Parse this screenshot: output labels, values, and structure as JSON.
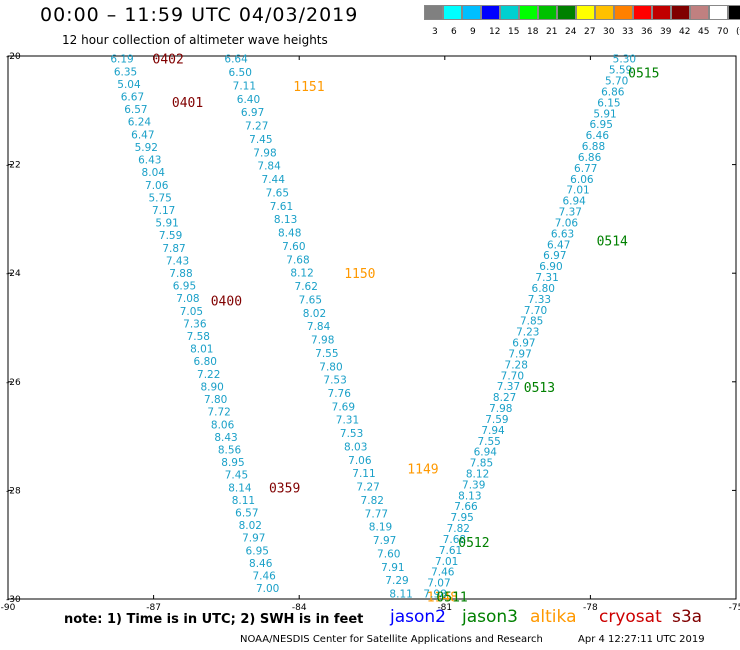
{
  "title": "00:00 – 11:59 UTC 04/03/2019",
  "subtitle": "12 hour collection of altimeter wave heights",
  "colorbar": {
    "labels": [
      "3",
      "6",
      "9",
      "12",
      "15",
      "18",
      "21",
      "24",
      "27",
      "30",
      "33",
      "36",
      "39",
      "42",
      "45",
      "70",
      "(ft)"
    ],
    "colors": [
      "#808080",
      "#00ffff",
      "#00bfff",
      "#0000ff",
      "#00d0d0",
      "#00ff00",
      "#00c000",
      "#008000",
      "#ffff00",
      "#ffc000",
      "#ff8000",
      "#ff0000",
      "#c00000",
      "#800000",
      "#c08080",
      "#ffffff",
      "#000000"
    ]
  },
  "note": "note: 1) Time is in UTC; 2) SWH is in feet",
  "legend": [
    {
      "label": "jason2",
      "color": "#0000ff"
    },
    {
      "label": "jason3",
      "color": "#008000"
    },
    {
      "label": "altika",
      "color": "#ff9900"
    },
    {
      "label": "cryosat",
      "color": "#cc0000"
    },
    {
      "label": "s3a",
      "color": "#800000"
    }
  ],
  "credit": "NOAA/NESDIS Center for Satellite Applications and Research",
  "timestamp": "Apr  4 12:27:11 UTC 2019",
  "chart_data": {
    "type": "scatter",
    "xlim": [
      -90,
      -75
    ],
    "ylim": [
      -30,
      -20
    ],
    "x_ticks": [
      "-90",
      "-87",
      "-84",
      "-81",
      "-78",
      "-75"
    ],
    "y_ticks": [
      "-20",
      "-22",
      "-24",
      "-26",
      "-28",
      "-30"
    ],
    "value_color": "#1aa0c8",
    "tracks": [
      {
        "satellite": "cryosat",
        "start": [
          -87.65,
          -20.05
        ],
        "end": [
          -84.65,
          -29.8
        ],
        "values": [
          "6.19",
          "6.35",
          "5.04",
          "6.67",
          "6.57",
          "6.24",
          "6.47",
          "5.92",
          "6.43",
          "8.04",
          "7.06",
          "5.75",
          "7.17",
          "5.91",
          "7.59",
          "7.87",
          "7.43",
          "7.88",
          "6.95",
          "7.08",
          "7.05",
          "7.36",
          "7.58",
          "8.01",
          "6.80",
          "7.22",
          "8.90",
          "7.80",
          "7.72",
          "8.06",
          "8.43",
          "8.56",
          "8.95",
          "7.45",
          "8.14",
          "8.11",
          "6.57",
          "8.02",
          "7.97",
          "6.95",
          "8.46",
          "7.46",
          "7.00"
        ],
        "time_labels": [
          {
            "text": "0402",
            "x": -86.7,
            "y": -20.05
          },
          {
            "text": "0401",
            "x": -86.3,
            "y": -20.85
          },
          {
            "text": "0400",
            "x": -85.5,
            "y": -24.5
          },
          {
            "text": "0359",
            "x": -84.3,
            "y": -27.95
          }
        ],
        "label_color": "#800000"
      },
      {
        "satellite": "altika",
        "start": [
          -85.3,
          -20.05
        ],
        "end": [
          -81.9,
          -29.9
        ],
        "values": [
          "6.64",
          "6.50",
          "7.11",
          "6.40",
          "6.97",
          "7.27",
          "7.45",
          "7.98",
          "7.84",
          "7.44",
          "7.65",
          "7.61",
          "8.13",
          "8.48",
          "7.60",
          "7.68",
          "8.12",
          "7.62",
          "7.65",
          "8.02",
          "7.84",
          "7.98",
          "7.55",
          "7.80",
          "7.53",
          "7.76",
          "7.69",
          "7.31",
          "7.53",
          "8.03",
          "7.06",
          "7.11",
          "7.27",
          "7.82",
          "7.77",
          "8.19",
          "7.97",
          "7.60",
          "7.91",
          "7.29",
          "8.11"
        ],
        "time_labels": [
          {
            "text": "1151",
            "x": -83.8,
            "y": -20.55
          },
          {
            "text": "1150",
            "x": -82.75,
            "y": -24.0
          },
          {
            "text": "1149",
            "x": -81.45,
            "y": -27.6
          },
          {
            "text": "1148",
            "x": -81.05,
            "y": -29.95
          }
        ],
        "label_color": "#ff9900"
      },
      {
        "satellite": "jason3",
        "start": [
          -81.2,
          -29.9
        ],
        "end": [
          -77.3,
          -20.05
        ],
        "values": [
          "7.98",
          "7.07",
          "7.46",
          "7.01",
          "7.61",
          "7.68",
          "7.82",
          "7.95",
          "7.66",
          "8.13",
          "7.39",
          "8.12",
          "7.85",
          "6.94",
          "7.55",
          "7.94",
          "7.59",
          "7.98",
          "8.27",
          "7.37",
          "7.70",
          "7.28",
          "7.97",
          "6.97",
          "7.23",
          "7.85",
          "7.70",
          "7.33",
          "6.80",
          "7.31",
          "6.90",
          "6.97",
          "6.47",
          "6.63",
          "7.06",
          "7.37",
          "6.94",
          "7.01",
          "6.06",
          "6.77",
          "6.86",
          "6.88",
          "6.46",
          "6.95",
          "5.91",
          "6.15",
          "6.86",
          "5.70",
          "5.59",
          "5.30"
        ],
        "time_labels": [
          {
            "text": "0515",
            "x": -76.9,
            "y": -20.3
          },
          {
            "text": "0514",
            "x": -77.55,
            "y": -23.4
          },
          {
            "text": "0513",
            "x": -79.05,
            "y": -26.1
          },
          {
            "text": "0512",
            "x": -80.4,
            "y": -28.95
          },
          {
            "text": "0511",
            "x": -80.85,
            "y": -29.95
          }
        ],
        "label_color": "#008000"
      }
    ]
  }
}
